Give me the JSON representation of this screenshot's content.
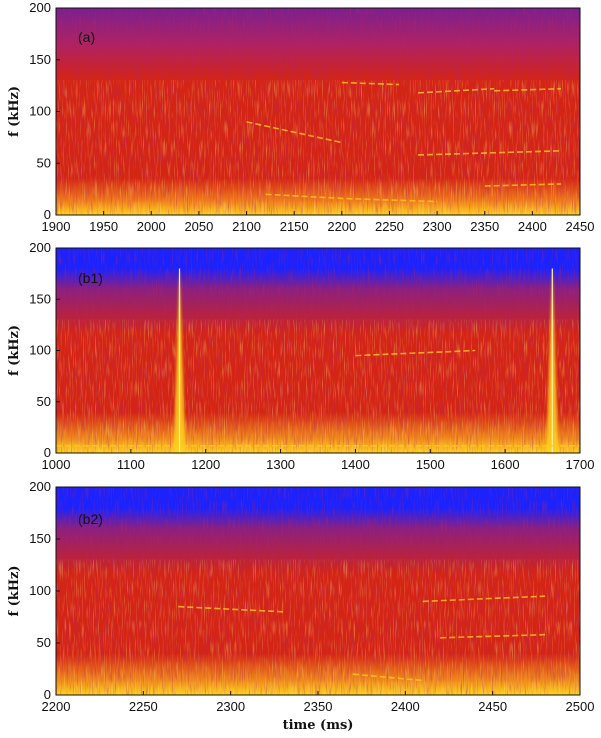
{
  "chart_data": [
    {
      "type": "heatmap",
      "panel_label": "(a)",
      "xlabel": "",
      "ylabel": "f (kHz)",
      "xlim": [
        1900,
        2450
      ],
      "ylim": [
        0,
        200
      ],
      "xticks": [
        1900,
        1950,
        2000,
        2050,
        2100,
        2150,
        2200,
        2250,
        2300,
        2350,
        2400,
        2450
      ],
      "yticks": [
        0,
        50,
        100,
        150,
        200
      ],
      "colors": {
        "top": "#7a2090",
        "mid": "#d42414",
        "low": "#ffd21e"
      },
      "features": [
        {
          "kind": "line",
          "t": [
            2120,
            2200,
            2300
          ],
          "f": [
            20,
            16,
            13
          ]
        },
        {
          "kind": "line",
          "t": [
            2350,
            2430
          ],
          "f": [
            28,
            30
          ]
        },
        {
          "kind": "line",
          "t": [
            2280,
            2430
          ],
          "f": [
            58,
            62
          ]
        },
        {
          "kind": "line",
          "t": [
            2280,
            2360
          ],
          "f": [
            118,
            122
          ]
        },
        {
          "kind": "line",
          "t": [
            2360,
            2430
          ],
          "f": [
            120,
            122
          ]
        },
        {
          "kind": "line",
          "t": [
            2200,
            2260
          ],
          "f": [
            128,
            126
          ]
        },
        {
          "kind": "line",
          "t": [
            2100,
            2200
          ],
          "f": [
            90,
            70
          ]
        }
      ]
    },
    {
      "type": "heatmap",
      "panel_label": "(b1)",
      "xlabel": "",
      "ylabel": "f (kHz)",
      "xlim": [
        1000,
        1700
      ],
      "ylim": [
        0,
        200
      ],
      "xticks": [
        1000,
        1100,
        1200,
        1300,
        1400,
        1500,
        1600,
        1700
      ],
      "yticks": [
        0,
        50,
        100,
        150,
        200
      ],
      "colors": {
        "top": "#1a22ff",
        "mid": "#d42414",
        "low": "#ffd21e"
      },
      "features": [
        {
          "kind": "spike",
          "t": 1165,
          "f": [
            0,
            180
          ]
        },
        {
          "kind": "spike",
          "t": 1663,
          "f": [
            0,
            180
          ]
        },
        {
          "kind": "line",
          "t": [
            1000,
            1700
          ],
          "f": [
            7,
            7
          ]
        },
        {
          "kind": "line",
          "t": [
            1400,
            1560
          ],
          "f": [
            95,
            100
          ]
        }
      ]
    },
    {
      "type": "heatmap",
      "panel_label": "(b2)",
      "xlabel": "time (ms)",
      "ylabel": "f (kHz)",
      "xlim": [
        2200,
        2500
      ],
      "ylim": [
        0,
        200
      ],
      "xticks": [
        2200,
        2250,
        2300,
        2350,
        2400,
        2450,
        2500
      ],
      "yticks": [
        0,
        50,
        100,
        150,
        200
      ],
      "colors": {
        "top": "#1a22ff",
        "mid": "#d42414",
        "low": "#ffd21e"
      },
      "features": [
        {
          "kind": "line",
          "t": [
            2410,
            2480
          ],
          "f": [
            90,
            95
          ]
        },
        {
          "kind": "line",
          "t": [
            2270,
            2330
          ],
          "f": [
            85,
            80
          ]
        },
        {
          "kind": "line",
          "t": [
            2370,
            2410
          ],
          "f": [
            20,
            14
          ]
        },
        {
          "kind": "line",
          "t": [
            2420,
            2480
          ],
          "f": [
            55,
            58
          ]
        }
      ]
    }
  ]
}
